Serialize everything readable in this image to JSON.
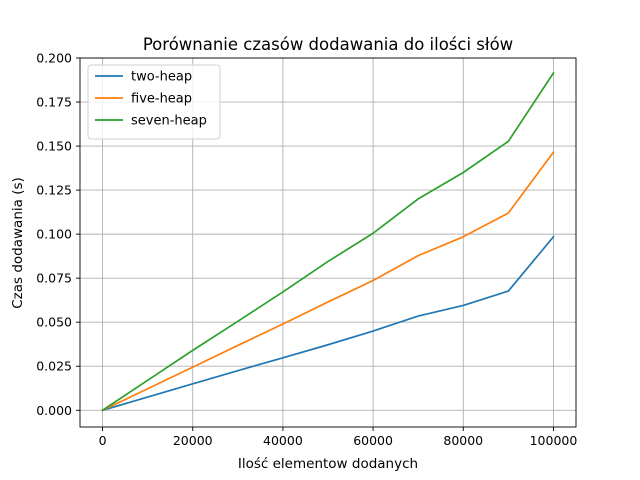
{
  "chart_data": {
    "type": "line",
    "title": "Porównanie czasów dodawania do ilości słów",
    "xlabel": "Ilość elementow dodanych",
    "ylabel": "Czas dodawania (s)",
    "x": [
      0,
      10000,
      20000,
      30000,
      40000,
      50000,
      60000,
      70000,
      80000,
      90000,
      100000
    ],
    "xlim": [
      -5000,
      105000
    ],
    "ylim": [
      -0.0095,
      0.2
    ],
    "xticks": [
      0,
      20000,
      40000,
      60000,
      80000,
      100000
    ],
    "xtick_labels": [
      "0",
      "20000",
      "40000",
      "60000",
      "80000",
      "100000"
    ],
    "yticks": [
      0.0,
      0.025,
      0.05,
      0.075,
      0.1,
      0.125,
      0.15,
      0.175,
      0.2
    ],
    "ytick_labels": [
      "0.000",
      "0.025",
      "0.050",
      "0.075",
      "0.100",
      "0.125",
      "0.150",
      "0.175",
      "0.200"
    ],
    "grid": true,
    "legend_position": "top-left",
    "series": [
      {
        "name": "two-heap",
        "color": "#1f77b4",
        "values": [
          0.0,
          0.0075,
          0.015,
          0.0225,
          0.0298,
          0.0372,
          0.045,
          0.0535,
          0.0595,
          0.0677,
          0.0985
        ]
      },
      {
        "name": "five-heap",
        "color": "#ff7f0e",
        "values": [
          0.0,
          0.0122,
          0.0245,
          0.0368,
          0.049,
          0.0615,
          0.0737,
          0.0878,
          0.0985,
          0.112,
          0.1465
        ]
      },
      {
        "name": "seven-heap",
        "color": "#2ca02c",
        "values": [
          0.0,
          0.017,
          0.034,
          0.0505,
          0.0672,
          0.0845,
          0.1005,
          0.12,
          0.135,
          0.1527,
          0.1915
        ]
      }
    ]
  }
}
